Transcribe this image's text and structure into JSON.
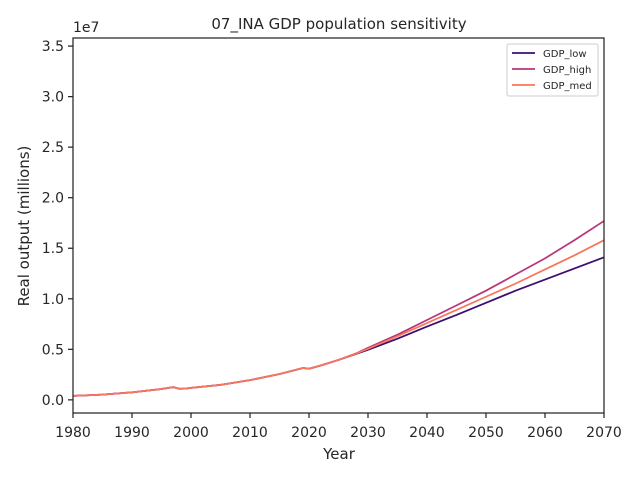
{
  "chart_data": {
    "type": "line",
    "title": "07_INA GDP population sensitivity",
    "xlabel": "Year",
    "ylabel": "Real output (millions)",
    "y_offset_label": "1e7",
    "xlim": [
      1980,
      2070
    ],
    "ylim": [
      -1300000,
      35800000
    ],
    "x_ticks": [
      1980,
      1990,
      2000,
      2010,
      2020,
      2030,
      2040,
      2050,
      2060,
      2070
    ],
    "y_ticks": [
      0.0,
      0.5,
      1.0,
      1.5,
      2.0,
      2.5,
      3.0,
      3.5
    ],
    "y_tick_labels": [
      "0.0",
      "0.5",
      "1.0",
      "1.5",
      "2.0",
      "2.5",
      "3.0",
      "3.5"
    ],
    "legend": "top-right",
    "grid": false,
    "series": [
      {
        "name": "GDP_low",
        "color": "#3b0f70",
        "x": [
          1980,
          1985,
          1990,
          1995,
          1997,
          1998,
          1999,
          2000,
          2005,
          2010,
          2015,
          2019,
          2020,
          2022,
          2025,
          2028,
          2030,
          2035,
          2040,
          2045,
          2050,
          2055,
          2060,
          2065,
          2070
        ],
        "y": [
          400000,
          520000,
          740000,
          1070000,
          1260000,
          1100000,
          1110000,
          1180000,
          1480000,
          1950000,
          2550000,
          3150000,
          3080000,
          3400000,
          3950000,
          4550000,
          4950000,
          6050000,
          7250000,
          8400000,
          9600000,
          10800000,
          11900000,
          13000000,
          14100000
        ]
      },
      {
        "name": "GDP_high",
        "color": "#b73779",
        "x": [
          1980,
          1985,
          1990,
          1995,
          1997,
          1998,
          1999,
          2000,
          2005,
          2010,
          2015,
          2019,
          2020,
          2022,
          2025,
          2028,
          2030,
          2035,
          2040,
          2045,
          2050,
          2055,
          2060,
          2065,
          2070
        ],
        "y": [
          400000,
          520000,
          740000,
          1070000,
          1260000,
          1100000,
          1110000,
          1180000,
          1480000,
          1950000,
          2550000,
          3150000,
          3080000,
          3400000,
          3950000,
          4600000,
          5150000,
          6450000,
          7900000,
          9350000,
          10800000,
          12400000,
          14000000,
          15800000,
          17700000
        ]
      },
      {
        "name": "GDP_med",
        "color": "#f8765c",
        "x": [
          1980,
          1985,
          1990,
          1995,
          1997,
          1998,
          1999,
          2000,
          2005,
          2010,
          2015,
          2019,
          2020,
          2022,
          2025,
          2028,
          2030,
          2035,
          2040,
          2045,
          2050,
          2055,
          2060,
          2065,
          2070
        ],
        "y": [
          400000,
          520000,
          740000,
          1070000,
          1260000,
          1100000,
          1110000,
          1180000,
          1480000,
          1950000,
          2550000,
          3150000,
          3080000,
          3400000,
          3950000,
          4580000,
          5050000,
          6300000,
          7600000,
          8900000,
          10200000,
          11500000,
          12900000,
          14300000,
          15800000
        ]
      }
    ]
  }
}
